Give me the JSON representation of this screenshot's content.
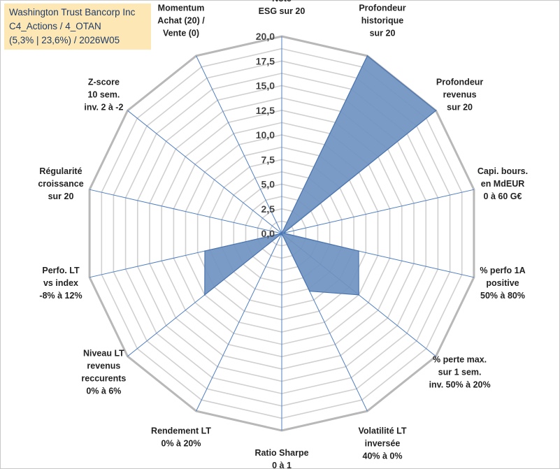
{
  "header": {
    "line1": "Washington Trust Bancorp Inc",
    "line2": "C4_Actions / 4_OTAN",
    "line3": "(5,3% | 23,6%) / 2026W05"
  },
  "chart_data": {
    "type": "radar",
    "r_min": 0,
    "r_max": 20,
    "ticks": [
      "0,0",
      "2,5",
      "5,0",
      "7,5",
      "10,0",
      "12,5",
      "15,0",
      "17,5",
      "20,0"
    ],
    "grid_step": 1.25,
    "colors": {
      "fill": "#6f93c0",
      "stroke": "#4a74b0",
      "grid": "#d0d0d0",
      "outer": "#b8b8b8",
      "axis": "#4f7fc3"
    },
    "axes": [
      {
        "label": [
          "Note",
          "ESG sur 20"
        ],
        "value": 0
      },
      {
        "label": [
          "Profondeur",
          "historique",
          "sur 20"
        ],
        "value": 20
      },
      {
        "label": [
          "Profondeur",
          "revenus",
          "sur 20"
        ],
        "value": 20
      },
      {
        "label": [
          "Capi. bours.",
          "en MdEUR",
          "0 à 60 G€"
        ],
        "value": 0.2
      },
      {
        "label": [
          "% perfo 1A",
          "positive",
          "50% à 80%"
        ],
        "value": 8
      },
      {
        "label": [
          "% perte max.",
          "sur 1 sem.",
          "inv. 50% à 20%"
        ],
        "value": 10
      },
      {
        "label": [
          "Volatilité LT",
          "inversée",
          "40% à 0%"
        ],
        "value": 6.5
      },
      {
        "label": [
          "Ratio Sharpe",
          "0 à 1"
        ],
        "value": 0
      },
      {
        "label": [
          "Rendement LT",
          "0% à 20%"
        ],
        "value": 0
      },
      {
        "label": [
          "Niveau LT",
          "revenus",
          "reccurents",
          "0% à 6%"
        ],
        "value": 10
      },
      {
        "label": [
          "Perfo. LT",
          "vs index",
          "-8% à 12%"
        ],
        "value": 8
      },
      {
        "label": [
          "Régularité",
          "croissance",
          "sur 20"
        ],
        "value": 0
      },
      {
        "label": [
          "Z-score",
          "10 sem.",
          "inv. 2 à -2"
        ],
        "value": 0
      },
      {
        "label": [
          "Momentum",
          "Achat (20) /",
          "Vente (0)"
        ],
        "value": 0
      }
    ]
  }
}
